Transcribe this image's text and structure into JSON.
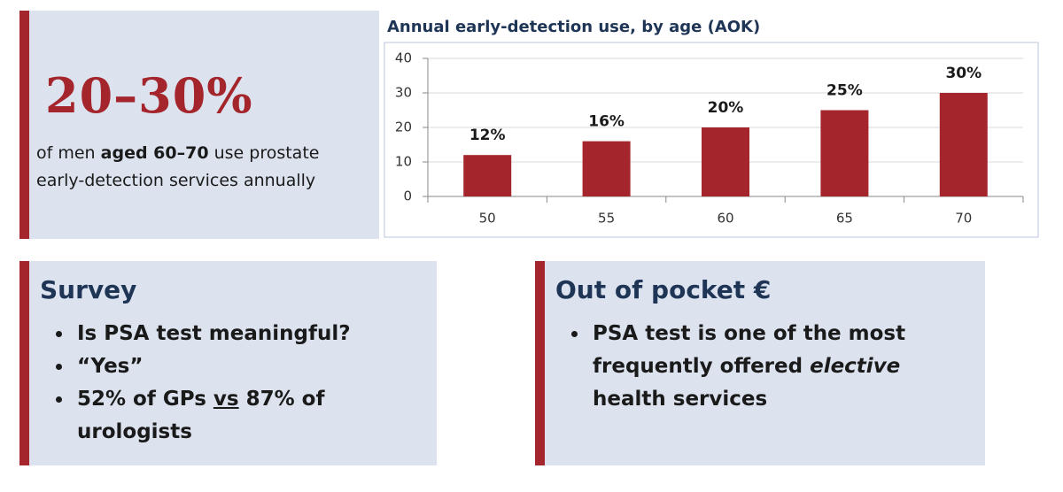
{
  "stat_panel": {
    "headline": "20–30%",
    "text_parts": [
      "of men ",
      "aged 60–70",
      " use prostate early-detection services annually"
    ]
  },
  "chart_data": {
    "type": "bar",
    "title": "Annual early-detection use, by age (AOK)",
    "categories": [
      "50",
      "55",
      "60",
      "65",
      "70"
    ],
    "values": [
      12,
      16,
      20,
      25,
      30
    ],
    "value_labels": [
      "12%",
      "16%",
      "20%",
      "25%",
      "30%"
    ],
    "color": "#a4262c",
    "ylim": [
      0,
      40
    ],
    "yticks": [
      0,
      10,
      20,
      30,
      40
    ],
    "grid": true
  },
  "survey": {
    "title": "Survey",
    "bullets": [
      [
        "Is PSA test meaningful?"
      ],
      [
        "“Yes”"
      ],
      [
        "52% of GPs ",
        "vs",
        " 87% of urologists"
      ]
    ]
  },
  "pocket": {
    "title": "Out of pocket €",
    "bullets": [
      [
        "PSA test is one of the most frequently offered ",
        "elective",
        " health services"
      ]
    ]
  }
}
